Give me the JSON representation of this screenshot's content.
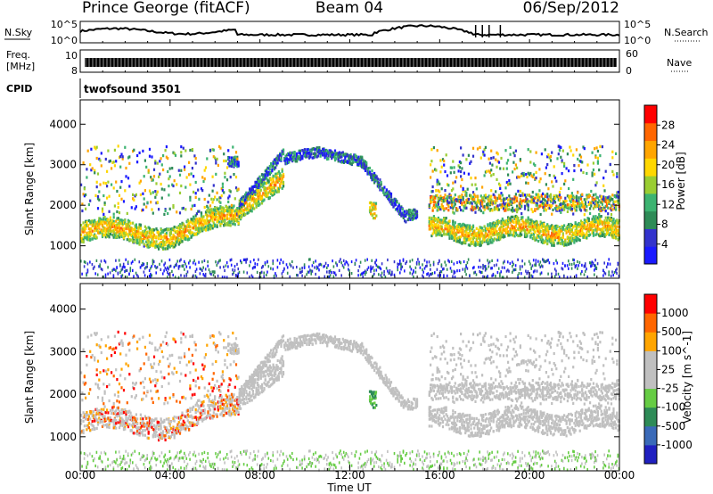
{
  "header": {
    "station": "Prince George (fitACF)",
    "beam": "Beam 04",
    "date": "06/Sep/2012"
  },
  "sky_panel": {
    "left_label": "N.Sky",
    "right_label": "N.Search",
    "y_ticks": [
      "10^5",
      "10^0"
    ],
    "right_ticks": [
      "10^5",
      "10^0"
    ]
  },
  "freq_panel": {
    "label_line1": "Freq.",
    "label_line2": "[MHz]",
    "y_ticks": [
      "10",
      "8"
    ],
    "right_label": "Nave",
    "right_ticks": [
      "60",
      "0"
    ]
  },
  "cpid_panel": {
    "label": "CPID",
    "program": "twofsound 3501"
  },
  "colors": {
    "power_scale": [
      "#1a1aff",
      "#3333cc",
      "#2e8b57",
      "#3cb371",
      "#9acd32",
      "#ffd700",
      "#ffa500",
      "#ff6600",
      "#ff0000"
    ],
    "velocity_scale": [
      "#2020c0",
      "#3a6ab8",
      "#2e8b57",
      "#66cc44",
      "#c0c0c0",
      "#c0c0c0",
      "#ffa500",
      "#ff6600",
      "#ff0000"
    ]
  },
  "chart_data": [
    {
      "type": "heatmap",
      "name": "Power",
      "ylabel": "Slant Range [km]",
      "xlabel": "",
      "x_ticks": [
        "00:00",
        "04:00",
        "08:00",
        "12:00",
        "16:00",
        "20:00",
        "00:00"
      ],
      "y_ticks": [
        1000,
        2000,
        3000,
        4000
      ],
      "ylim": [
        200,
        4600
      ],
      "xlim_hours": [
        0,
        24
      ],
      "colorbar_label": "Power [dB]",
      "colorbar_ticks": [
        4,
        8,
        12,
        16,
        20,
        24,
        28
      ],
      "colorbar_range": [
        0,
        32
      ]
    },
    {
      "type": "heatmap",
      "name": "Velocity",
      "ylabel": "Slant Range [km]",
      "xlabel": "Time UT",
      "x_ticks": [
        "00:00",
        "04:00",
        "08:00",
        "12:00",
        "16:00",
        "20:00",
        "00:00"
      ],
      "y_ticks": [
        1000,
        2000,
        3000,
        4000
      ],
      "ylim": [
        200,
        4600
      ],
      "xlim_hours": [
        0,
        24
      ],
      "colorbar_label": "Velocity [m s^-1]",
      "colorbar_ticks": [
        "1000",
        "500",
        "100",
        "25",
        "-25",
        "-100",
        "-500",
        "-1000"
      ]
    }
  ]
}
